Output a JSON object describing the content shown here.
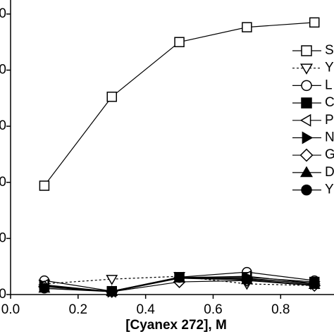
{
  "chart_data": {
    "type": "line",
    "x_label": "[Cyanex 272], M",
    "xlim": [
      0,
      0.958
    ],
    "ylim": [
      0,
      105
    ],
    "xticks": [
      {
        "value": 0,
        "label": "0.0"
      },
      0.2,
      0.4,
      0.6,
      0.8
    ],
    "yticks": [
      {
        "value": 0,
        "label": "0"
      },
      {
        "value": 20,
        "label": "0"
      },
      {
        "value": 40,
        "label": "0"
      },
      {
        "value": 60,
        "label": "0"
      },
      {
        "value": 80,
        "label": "0"
      },
      {
        "value": 100,
        "label": "0"
      }
    ],
    "x": [
      0.1,
      0.3,
      0.5,
      0.7,
      0.9
    ],
    "series": [
      {
        "name": "S",
        "color": "#000000",
        "marker": "square",
        "filled": false,
        "dashed": false,
        "values": [
          38.8,
          70.5,
          90,
          95.3,
          97
        ]
      },
      {
        "name": "Y",
        "color": "#000000",
        "marker": "triangle-down",
        "filled": false,
        "dashed": true,
        "values": [
          3.8,
          5.5,
          6.5,
          3.8,
          3.2
        ]
      },
      {
        "name": "L",
        "color": "#000000",
        "marker": "circle",
        "filled": false,
        "dashed": false,
        "values": [
          5,
          1.2,
          6.2,
          8,
          5
        ]
      },
      {
        "name": "C",
        "color": "#000000",
        "marker": "square",
        "filled": true,
        "dashed": false,
        "values": [
          3,
          1.2,
          6.2,
          6.2,
          4.5
        ]
      },
      {
        "name": "P",
        "color": "#000000",
        "marker": "triangle-left",
        "filled": false,
        "dashed": false,
        "values": [
          3.5,
          1,
          6,
          6.5,
          4
        ]
      },
      {
        "name": "N",
        "color": "#000000",
        "marker": "triangle-right",
        "filled": true,
        "dashed": false,
        "values": [
          3.2,
          1,
          6,
          5.8,
          3.8
        ]
      },
      {
        "name": "G",
        "color": "#000000",
        "marker": "diamond",
        "filled": false,
        "dashed": false,
        "values": [
          2.8,
          1,
          4.5,
          5,
          3.2
        ]
      },
      {
        "name": "D",
        "color": "#000000",
        "marker": "triangle-up",
        "filled": true,
        "dashed": false,
        "values": [
          2.2,
          1,
          5.8,
          5.2,
          3.5
        ]
      },
      {
        "name": "Y",
        "color": "#000000",
        "marker": "circle",
        "filled": true,
        "dashed": false,
        "values": [
          2.2,
          1.2,
          6,
          5.5,
          4
        ]
      }
    ]
  }
}
